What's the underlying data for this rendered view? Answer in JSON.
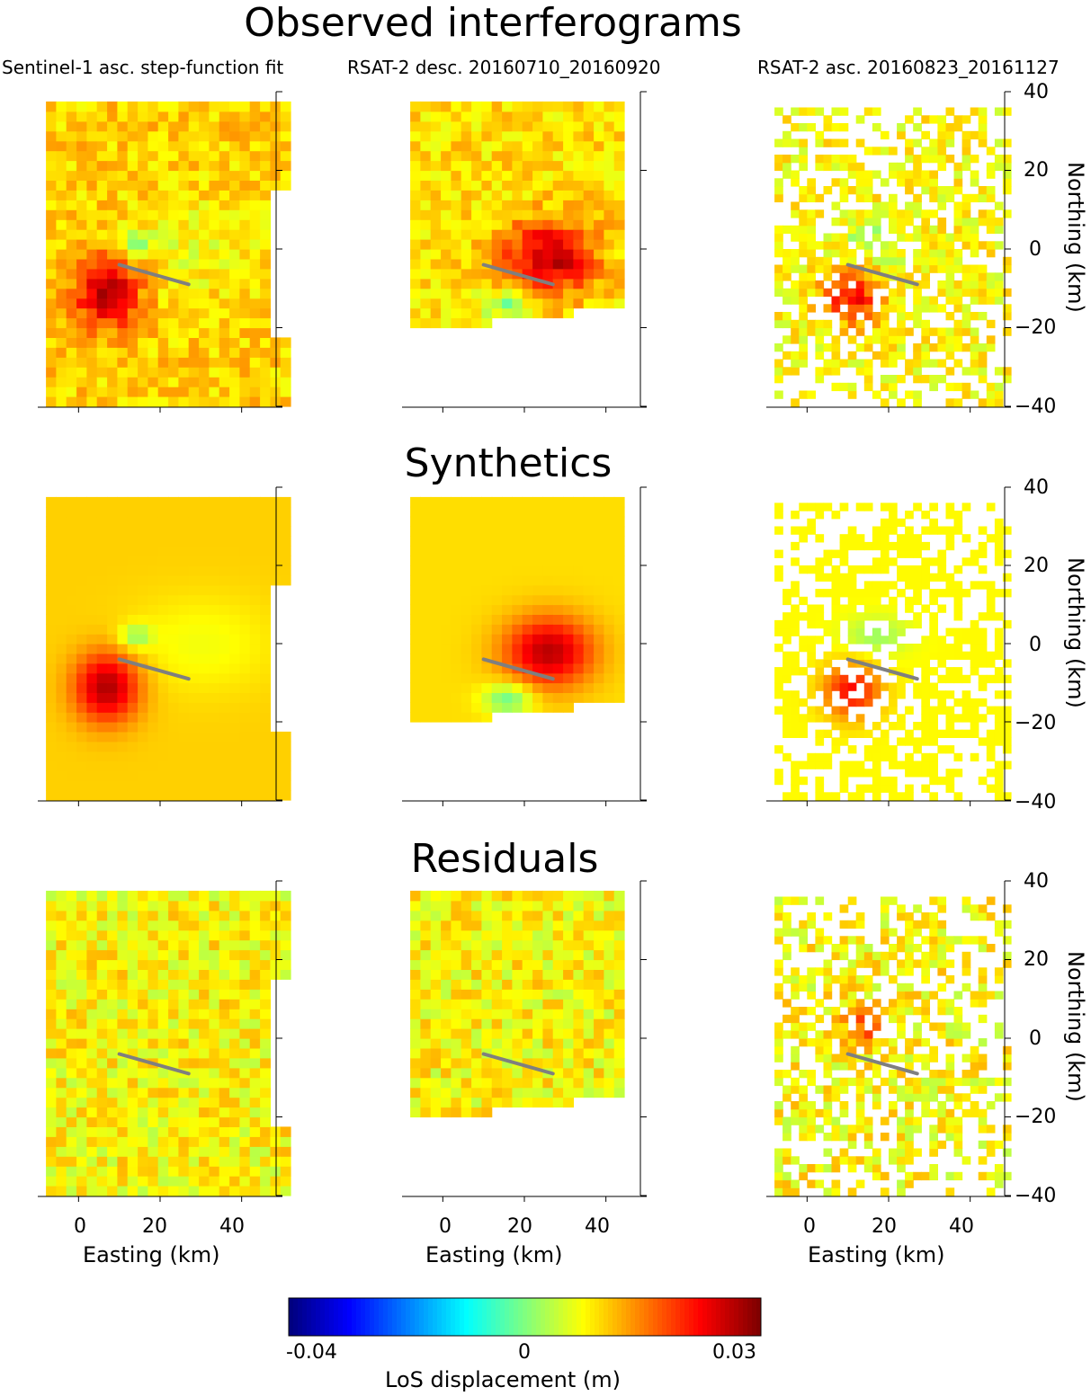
{
  "figure": {
    "section_titles": [
      "Observed interferograms",
      "Synthetics",
      "Residuals"
    ],
    "panel_subtitles": [
      "Sentinel-1 asc. step-function fit",
      "RSAT-2 desc. 20160710_20160920",
      "RSAT-2 asc. 20160823_20161127"
    ]
  },
  "chart_data": {
    "type": "heatmap",
    "rows": [
      "Observed interferograms",
      "Synthetics",
      "Residuals"
    ],
    "columns": [
      "Sentinel-1 asc. step-function fit",
      "RSAT-2 desc. 20160710_20160920",
      "RSAT-2 asc. 20160823_20161127"
    ],
    "xlabel": "Easting (km)",
    "ylabel": "Northing (km)",
    "xlim": [
      -10,
      50
    ],
    "ylim": [
      -40,
      40
    ],
    "x_ticks": [
      0,
      20,
      40
    ],
    "y_ticks": [
      -40,
      -20,
      0,
      20,
      40
    ],
    "x_tick_labels": [
      "0",
      "20",
      "40"
    ],
    "y_tick_labels": [
      "−40",
      "−20",
      "0",
      "20",
      "40"
    ],
    "colorbar": {
      "label": "LoS displacement (m)",
      "range": [
        -0.04,
        0.03
      ],
      "ticks": [
        -0.04,
        0,
        0.03
      ],
      "tick_labels": [
        "-0.04",
        "0",
        "0.03"
      ],
      "colormap": "jet"
    },
    "fault_trace": {
      "start": [
        10,
        -4
      ],
      "end": [
        27,
        -9
      ],
      "color": "#7f7f7f"
    },
    "grid": false
  }
}
